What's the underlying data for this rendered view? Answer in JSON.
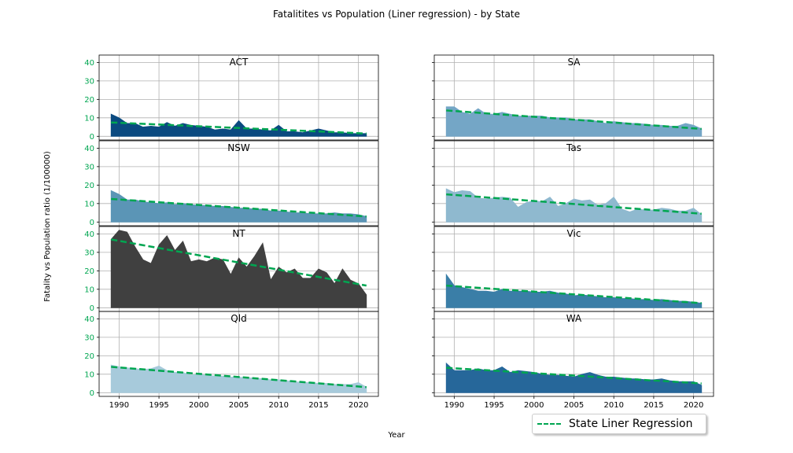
{
  "chart_data": {
    "type": "area",
    "title": "Fatalitites vs Population (Liner regression) - by State",
    "xlabel": "Year",
    "ylabel": "Fatality vs Population ratio (1/100000)",
    "ylim": [
      -2,
      44
    ],
    "xlim": [
      1987.5,
      2022.5
    ],
    "xticks": [
      1990,
      1995,
      2000,
      2005,
      2010,
      2015,
      2020
    ],
    "yticks": [
      0,
      10,
      20,
      30,
      40
    ],
    "grid": true,
    "shared_axes": true,
    "legend": {
      "label": "State Liner Regression",
      "placement": "bottom-right"
    },
    "trend_color": "#00a651",
    "ytick_color": "#00a651",
    "years": [
      1989,
      1990,
      1991,
      1992,
      1993,
      1994,
      1995,
      1996,
      1997,
      1998,
      1999,
      2000,
      2001,
      2002,
      2003,
      2004,
      2005,
      2006,
      2007,
      2008,
      2009,
      2010,
      2011,
      2012,
      2013,
      2014,
      2015,
      2016,
      2017,
      2018,
      2019,
      2020,
      2021
    ],
    "panels": [
      {
        "name": "ACT",
        "color": "#0b4a80",
        "trend": [
          7.5,
          1.5
        ],
        "values": [
          12,
          10,
          7,
          7,
          5,
          5.5,
          5,
          7.5,
          5.5,
          7,
          6,
          5.5,
          5,
          3.5,
          4,
          3.5,
          8.5,
          4,
          4,
          3.5,
          3,
          6,
          2.5,
          2.5,
          2,
          3,
          4,
          3,
          2,
          2,
          1.5,
          1.5,
          1.5
        ]
      },
      {
        "name": "SA",
        "color": "#74a6c6",
        "trend": [
          14,
          4
        ],
        "values": [
          16,
          16,
          13,
          12,
          15,
          12,
          12,
          13,
          12,
          11,
          11,
          11,
          11,
          10,
          10,
          10,
          9,
          9,
          9,
          8,
          7,
          8,
          7.5,
          7,
          7,
          6.5,
          6,
          6,
          5.5,
          5.5,
          7,
          6,
          4
        ]
      },
      {
        "name": "NSW",
        "color": "#5b95b6",
        "trend": [
          12.5,
          3
        ],
        "values": [
          17,
          15,
          12,
          12,
          11,
          10.5,
          10,
          10.5,
          9.5,
          10,
          9.5,
          9,
          9,
          8.5,
          8.5,
          8,
          7.5,
          7.5,
          7,
          7,
          6,
          6,
          5.5,
          5,
          5,
          4.5,
          4.5,
          4.5,
          5,
          4.5,
          4.5,
          4,
          3
        ]
      },
      {
        "name": "Tas",
        "color": "#8fb9cf",
        "trend": [
          15,
          4.5
        ],
        "values": [
          18,
          16,
          17,
          16.5,
          13,
          12.5,
          13,
          13.5,
          13,
          8,
          10.5,
          11.5,
          11,
          13.5,
          8.5,
          10,
          12.5,
          11.5,
          12,
          9,
          10,
          13.5,
          7,
          5.5,
          7,
          6.5,
          6.5,
          7.5,
          7,
          6,
          6,
          7.5,
          4
        ]
      },
      {
        "name": "NT",
        "color": "#404040",
        "trend": [
          37,
          12
        ],
        "values": [
          37,
          42,
          41,
          33,
          26,
          24,
          34,
          39,
          31,
          36,
          25,
          26,
          25,
          27,
          26,
          18,
          27,
          22,
          28,
          35,
          15,
          22,
          19,
          21,
          16,
          16,
          21,
          19,
          13,
          21,
          15,
          13,
          7
        ]
      },
      {
        "name": "Vic",
        "color": "#3a7ea7",
        "trend": [
          12,
          2.5
        ],
        "values": [
          18,
          12,
          11,
          10,
          9,
          9,
          8.5,
          10,
          9,
          9,
          9,
          8.5,
          8.5,
          9,
          8,
          7.5,
          6.5,
          7,
          6.5,
          6,
          5.5,
          5.5,
          5,
          5,
          4.5,
          4.5,
          4,
          4.5,
          4,
          3.5,
          3.5,
          3,
          2.5
        ]
      },
      {
        "name": "Qld",
        "color": "#a7cadb",
        "trend": [
          14,
          3
        ],
        "values": [
          15,
          14,
          13.5,
          13,
          12.5,
          13,
          14.5,
          12,
          11,
          11,
          9.5,
          10,
          9.5,
          9,
          9,
          8.5,
          8.5,
          8,
          8,
          7.5,
          7,
          7,
          6.5,
          6,
          5.5,
          5.5,
          5,
          5,
          4.5,
          4.5,
          4.5,
          5.5,
          3
        ]
      },
      {
        "name": "WA",
        "color": "#26679a",
        "trend": [
          13.5,
          5
        ],
        "values": [
          16,
          12,
          12,
          12,
          13,
          12,
          12,
          14,
          11,
          12,
          11.5,
          11,
          10,
          9.5,
          9.5,
          9,
          8.5,
          10,
          11,
          9.5,
          8.5,
          8.5,
          8,
          7.5,
          7.5,
          7,
          7,
          7.5,
          6.5,
          6,
          6,
          6,
          4
        ]
      }
    ]
  }
}
